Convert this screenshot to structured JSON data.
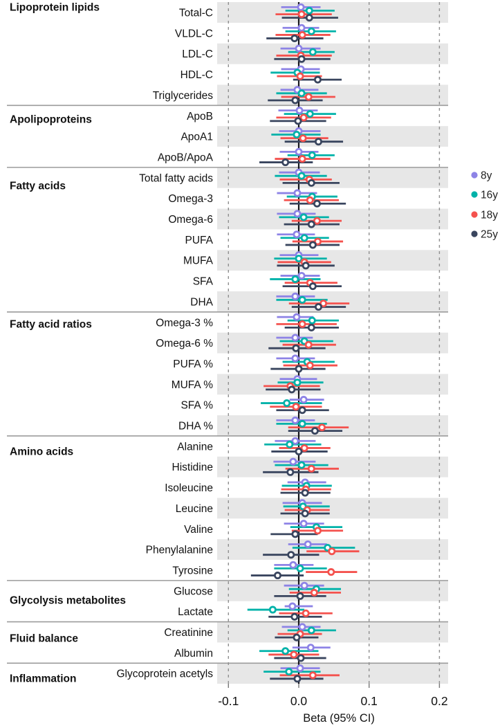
{
  "chart_data": {
    "type": "forest",
    "title": "",
    "xlabel": "Beta (95% CI)",
    "x_axis": {
      "label": "Beta (95% CI)",
      "ticks": [
        -0.1,
        0.0,
        0.1,
        0.2
      ],
      "tick_labels": [
        "-0.1",
        "0.0",
        "0.1",
        "0.2"
      ],
      "range": [
        -0.115,
        0.212
      ],
      "zero_line": true,
      "gridlines": "dashed-vertical"
    },
    "legend": {
      "position": "right"
    },
    "series": [
      {
        "name": "8y",
        "color": "#8D83E6"
      },
      {
        "name": "16y",
        "color": "#00B2A9"
      },
      {
        "name": "18y",
        "color": "#F4524E"
      },
      {
        "name": "25y",
        "color": "#39455E"
      }
    ],
    "groups": [
      "Lipoprotein lipids",
      "Apolipoproteins",
      "Fatty acids",
      "Fatty acid ratios",
      "Amino acids",
      "Glycolysis metabolites",
      "Fluid balance",
      "Inflammation"
    ],
    "ci_format": "[lower, point, upper] per series, series order 8y/16y/18y/25y",
    "rows": [
      {
        "label": "Total-C",
        "group": "Lipoprotein lipids",
        "ci": [
          [
            -0.025,
            0.003,
            0.031
          ],
          [
            -0.019,
            0.015,
            0.051
          ],
          [
            -0.033,
            0.004,
            0.047
          ],
          [
            -0.024,
            0.015,
            0.056
          ]
        ]
      },
      {
        "label": "VLDL-C",
        "group": "Lipoprotein lipids",
        "ci": [
          [
            -0.023,
            0.004,
            0.029
          ],
          [
            -0.019,
            0.018,
            0.053
          ],
          [
            -0.033,
            0.005,
            0.045
          ],
          [
            -0.046,
            -0.006,
            0.035
          ]
        ]
      },
      {
        "label": "LDL-C",
        "group": "Lipoprotein lipids",
        "ci": [
          [
            -0.026,
            0.0,
            0.031
          ],
          [
            -0.015,
            0.02,
            0.051
          ],
          [
            -0.032,
            0.003,
            0.047
          ],
          [
            -0.035,
            0.004,
            0.045
          ]
        ]
      },
      {
        "label": "HDL-C",
        "group": "Lipoprotein lipids",
        "ci": [
          [
            -0.025,
            0.003,
            0.03
          ],
          [
            -0.04,
            -0.002,
            0.03
          ],
          [
            -0.031,
            0.002,
            0.033
          ],
          [
            -0.008,
            0.027,
            0.061
          ]
        ]
      },
      {
        "label": "Triglycerides",
        "group": "Lipoprotein lipids",
        "ci": [
          [
            -0.026,
            -0.002,
            0.028
          ],
          [
            -0.032,
            0.004,
            0.04
          ],
          [
            -0.025,
            0.014,
            0.052
          ],
          [
            -0.044,
            -0.005,
            0.034
          ]
        ]
      },
      {
        "label": "ApoB",
        "group": "Apolipoproteins",
        "ci": [
          [
            -0.029,
            0.001,
            0.027
          ],
          [
            -0.021,
            0.016,
            0.053
          ],
          [
            -0.032,
            0.007,
            0.046
          ],
          [
            -0.041,
            -0.001,
            0.039
          ]
        ]
      },
      {
        "label": "ApoA1",
        "group": "Apolipoproteins",
        "ci": [
          [
            -0.028,
            0.0,
            0.031
          ],
          [
            -0.039,
            -0.003,
            0.031
          ],
          [
            -0.026,
            0.006,
            0.042
          ],
          [
            -0.02,
            0.028,
            0.063
          ]
        ]
      },
      {
        "label": "ApoB/ApoA",
        "group": "Apolipoproteins",
        "ci": [
          [
            -0.027,
            0.0,
            0.028
          ],
          [
            -0.016,
            0.019,
            0.051
          ],
          [
            -0.034,
            0.005,
            0.045
          ],
          [
            -0.056,
            -0.019,
            0.02
          ]
        ]
      },
      {
        "label": "Total fatty acids",
        "group": "Fatty acids",
        "ci": [
          [
            -0.028,
            0.0,
            0.03
          ],
          [
            -0.034,
            0.004,
            0.04
          ],
          [
            -0.027,
            0.015,
            0.047
          ],
          [
            -0.023,
            0.018,
            0.058
          ]
        ]
      },
      {
        "label": "Omega-3",
        "group": "Fatty acids",
        "ci": [
          [
            -0.031,
            -0.002,
            0.026
          ],
          [
            -0.017,
            0.019,
            0.055
          ],
          [
            -0.021,
            0.016,
            0.057
          ],
          [
            -0.013,
            0.026,
            0.067
          ]
        ]
      },
      {
        "label": "Omega-6",
        "group": "Fatty acids",
        "ci": [
          [
            -0.031,
            -0.002,
            0.024
          ],
          [
            -0.028,
            0.007,
            0.043
          ],
          [
            -0.01,
            0.026,
            0.061
          ],
          [
            -0.021,
            0.018,
            0.058
          ]
        ]
      },
      {
        "label": "PUFA",
        "group": "Fatty acids",
        "ci": [
          [
            -0.031,
            -0.003,
            0.023
          ],
          [
            -0.026,
            0.008,
            0.043
          ],
          [
            -0.009,
            0.027,
            0.063
          ],
          [
            -0.019,
            0.02,
            0.058
          ]
        ]
      },
      {
        "label": "MUFA",
        "group": "Fatty acids",
        "ci": [
          [
            -0.027,
            0.0,
            0.028
          ],
          [
            -0.035,
            0.0,
            0.04
          ],
          [
            -0.03,
            0.008,
            0.046
          ],
          [
            -0.031,
            0.01,
            0.051
          ]
        ]
      },
      {
        "label": "SFA",
        "group": "Fatty acids",
        "ci": [
          [
            -0.026,
            0.004,
            0.03
          ],
          [
            -0.041,
            -0.005,
            0.031
          ],
          [
            -0.02,
            0.016,
            0.055
          ],
          [
            -0.023,
            0.02,
            0.061
          ]
        ]
      },
      {
        "label": "DHA",
        "group": "Fatty acids",
        "ci": [
          [
            -0.032,
            -0.005,
            0.023
          ],
          [
            -0.032,
            0.005,
            0.041
          ],
          [
            -0.014,
            0.035,
            0.072
          ],
          [
            -0.01,
            0.028,
            0.067
          ]
        ]
      },
      {
        "label": "Omega-3 %",
        "group": "Fatty acid ratios",
        "ci": [
          [
            -0.031,
            -0.003,
            0.021
          ],
          [
            -0.016,
            0.019,
            0.057
          ],
          [
            -0.032,
            0.005,
            0.054
          ],
          [
            -0.02,
            0.018,
            0.057
          ]
        ]
      },
      {
        "label": "Omega-6 %",
        "group": "Fatty acid ratios",
        "ci": [
          [
            -0.032,
            -0.005,
            0.02
          ],
          [
            -0.027,
            0.008,
            0.049
          ],
          [
            -0.023,
            0.014,
            0.053
          ],
          [
            -0.043,
            -0.004,
            0.038
          ]
        ]
      },
      {
        "label": "PUFA %",
        "group": "Fatty acid ratios",
        "ci": [
          [
            -0.032,
            -0.005,
            0.023
          ],
          [
            -0.023,
            0.012,
            0.051
          ],
          [
            -0.022,
            0.016,
            0.055
          ],
          [
            -0.04,
            0.0,
            0.038
          ]
        ]
      },
      {
        "label": "MUFA %",
        "group": "Fatty acid ratios",
        "ci": [
          [
            -0.027,
            -0.002,
            0.026
          ],
          [
            -0.03,
            -0.002,
            0.035
          ],
          [
            -0.05,
            -0.012,
            0.03
          ],
          [
            -0.047,
            -0.01,
            0.031
          ]
        ]
      },
      {
        "label": "SFA %",
        "group": "Fatty acid ratios",
        "ci": [
          [
            -0.013,
            0.007,
            0.036
          ],
          [
            -0.054,
            -0.017,
            0.033
          ],
          [
            -0.041,
            -0.004,
            0.033
          ],
          [
            -0.032,
            0.005,
            0.043
          ]
        ]
      },
      {
        "label": "DHA %",
        "group": "Fatty acid ratios",
        "ci": [
          [
            -0.032,
            -0.005,
            0.023
          ],
          [
            -0.032,
            0.005,
            0.04
          ],
          [
            -0.015,
            0.033,
            0.071
          ],
          [
            -0.015,
            0.023,
            0.062
          ]
        ]
      },
      {
        "label": "Alanine",
        "group": "Amino acids",
        "ci": [
          [
            -0.034,
            -0.005,
            0.024
          ],
          [
            -0.049,
            -0.013,
            0.032
          ],
          [
            -0.028,
            0.008,
            0.045
          ],
          [
            -0.039,
            0.0,
            0.041
          ]
        ]
      },
      {
        "label": "Histidine",
        "group": "Amino acids",
        "ci": [
          [
            -0.036,
            -0.008,
            0.024
          ],
          [
            -0.034,
            0.004,
            0.042
          ],
          [
            -0.019,
            0.018,
            0.057
          ],
          [
            -0.051,
            -0.012,
            0.028
          ]
        ]
      },
      {
        "label": "Isoleucine",
        "group": "Amino acids",
        "ci": [
          [
            -0.016,
            0.009,
            0.039
          ],
          [
            -0.024,
            0.011,
            0.047
          ],
          [
            -0.025,
            0.01,
            0.046
          ],
          [
            -0.026,
            0.009,
            0.045
          ]
        ]
      },
      {
        "label": "Leucine",
        "group": "Amino acids",
        "ci": [
          [
            -0.023,
            0.005,
            0.033
          ],
          [
            -0.022,
            0.006,
            0.044
          ],
          [
            -0.02,
            0.012,
            0.044
          ],
          [
            -0.026,
            0.009,
            0.044
          ]
        ]
      },
      {
        "label": "Valine",
        "group": "Amino acids",
        "ci": [
          [
            -0.021,
            0.007,
            0.036
          ],
          [
            -0.012,
            0.025,
            0.062
          ],
          [
            -0.01,
            0.027,
            0.063
          ],
          [
            -0.04,
            -0.005,
            0.027
          ]
        ]
      },
      {
        "label": "Phenylalanine",
        "group": "Amino acids",
        "ci": [
          [
            -0.015,
            0.013,
            0.04
          ],
          [
            -0.009,
            0.041,
            0.08
          ],
          [
            0.011,
            0.047,
            0.086
          ],
          [
            -0.051,
            -0.011,
            0.029
          ]
        ]
      },
      {
        "label": "Tyrosine",
        "group": "Amino acids",
        "ci": [
          [
            -0.035,
            -0.008,
            0.021
          ],
          [
            -0.035,
            0.002,
            0.04
          ],
          [
            0.01,
            0.046,
            0.083
          ],
          [
            -0.068,
            -0.03,
            0.007
          ]
        ]
      },
      {
        "label": "Glucose",
        "group": "Glycolysis metabolites",
        "ci": [
          [
            -0.021,
            0.008,
            0.036
          ],
          [
            -0.014,
            0.025,
            0.06
          ],
          [
            -0.013,
            0.022,
            0.06
          ],
          [
            -0.035,
            0.002,
            0.039
          ]
        ]
      },
      {
        "label": "Lactate",
        "group": "Glycolysis metabolites",
        "ci": [
          [
            -0.02,
            -0.009,
            0.02
          ],
          [
            -0.073,
            -0.037,
            0.008
          ],
          [
            -0.028,
            0.01,
            0.048
          ],
          [
            -0.043,
            -0.006,
            0.033
          ]
        ]
      },
      {
        "label": "Creatinine",
        "group": "Fluid balance",
        "ci": [
          [
            -0.024,
            0.005,
            0.031
          ],
          [
            -0.016,
            0.018,
            0.053
          ],
          [
            -0.03,
            0.002,
            0.033
          ],
          [
            -0.034,
            -0.003,
            0.028
          ]
        ]
      },
      {
        "label": "Albumin",
        "group": "Fluid balance",
        "ci": [
          [
            -0.009,
            0.017,
            0.045
          ],
          [
            -0.056,
            -0.019,
            0.028
          ],
          [
            -0.043,
            -0.007,
            0.029
          ],
          [
            -0.035,
            0.003,
            0.039
          ]
        ]
      },
      {
        "label": "Glycoprotein acetyls",
        "group": "Inflammation",
        "ci": [
          [
            -0.026,
            0.002,
            0.03
          ],
          [
            -0.05,
            -0.014,
            0.031
          ],
          [
            -0.027,
            0.02,
            0.058
          ],
          [
            -0.041,
            -0.002,
            0.035
          ]
        ]
      }
    ],
    "colors": {
      "band_gray": "#E7E7E7",
      "grid_dashed": "#8F8F8F",
      "zero_line": "#16161D",
      "separator": "#9B9B9B",
      "text": "#111111"
    }
  }
}
